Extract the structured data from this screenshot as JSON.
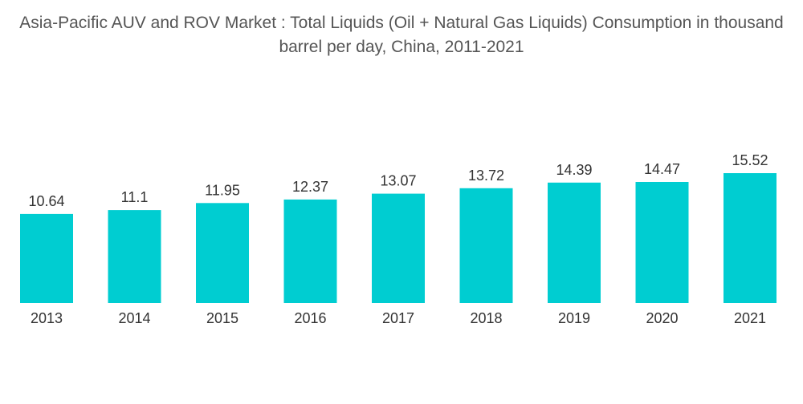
{
  "chart_data": {
    "type": "bar",
    "title": "Asia-Pacific AUV and ROV Market : Total Liquids (Oil + Natural Gas Liquids) Consumption in thousand barrel per day, China, 2011-2021",
    "xlabel": "",
    "ylabel": "",
    "categories": [
      "2013",
      "2014",
      "2015",
      "2016",
      "2017",
      "2018",
      "2019",
      "2020",
      "2021"
    ],
    "values": [
      10.64,
      11.1,
      11.95,
      12.37,
      13.07,
      13.72,
      14.39,
      14.47,
      15.52
    ],
    "value_labels": [
      "10.64",
      "11.1",
      "11.95",
      "12.37",
      "13.07",
      "13.72",
      "14.39",
      "14.47",
      "15.52"
    ],
    "ylim": [
      0,
      15.52
    ],
    "grid": false,
    "legend": "none",
    "colors": {
      "bar": "#00CDD1",
      "text": "#333333",
      "title": "#555555"
    }
  }
}
